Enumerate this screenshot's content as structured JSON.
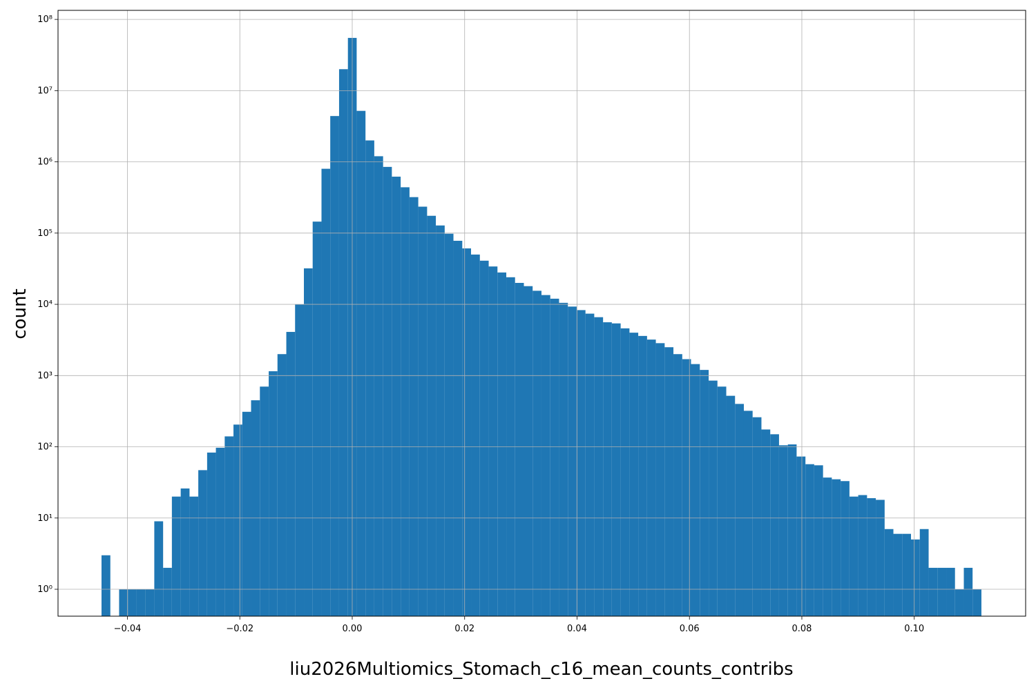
{
  "chart_data": {
    "type": "histogram",
    "xlabel": "liu2026Multiomics_Stomach_c16_mean_counts_contribs",
    "ylabel": "count",
    "color": "#1f77b4",
    "log_y": true,
    "grid": true,
    "bins": [
      -0.04461,
      -0.04304,
      -0.04148,
      -0.03991,
      -0.03835,
      -0.03678,
      -0.03522,
      -0.03365,
      -0.03209,
      -0.03052,
      -0.02895,
      -0.02739,
      -0.02582,
      -0.02426,
      -0.02269,
      -0.02113,
      -0.01956,
      -0.018,
      -0.01643,
      -0.01486,
      -0.0133,
      -0.01173,
      -0.01017,
      -0.0086,
      -0.00704,
      -0.00547,
      -0.00391,
      -0.00234,
      -0.00077,
      0.00079,
      0.00236,
      0.00392,
      0.00549,
      0.00705,
      0.00862,
      0.01019,
      0.01175,
      0.01332,
      0.01488,
      0.01645,
      0.01801,
      0.01958,
      0.02114,
      0.02271,
      0.02428,
      0.02584,
      0.02741,
      0.02897,
      0.03054,
      0.0321,
      0.03367,
      0.03524,
      0.0368,
      0.03837,
      0.03993,
      0.0415,
      0.04306,
      0.04463,
      0.04619,
      0.04776,
      0.04933,
      0.05089,
      0.05246,
      0.05402,
      0.05559,
      0.05715,
      0.05872,
      0.06028,
      0.06185,
      0.06342,
      0.06498,
      0.06655,
      0.06811,
      0.06968,
      0.07124,
      0.07281,
      0.07438,
      0.07594,
      0.07751,
      0.07907,
      0.08064,
      0.0822,
      0.08377,
      0.08533,
      0.0869,
      0.08847,
      0.09003,
      0.0916,
      0.09316,
      0.09473,
      0.09629,
      0.09786,
      0.09942,
      0.10099,
      0.10256,
      0.10412,
      0.10569,
      0.10725,
      0.10882,
      0.11038,
      0.11195
    ],
    "values": [
      3,
      0,
      1,
      1,
      1,
      1,
      9,
      2,
      20,
      26,
      20,
      47,
      83,
      97,
      140,
      205,
      310,
      450,
      700,
      1150,
      2000,
      4100,
      10000,
      32000,
      145000,
      800000,
      4400000,
      20000000,
      55000000,
      5200000,
      2000000,
      1200000,
      850000,
      620000,
      440000,
      320000,
      235000,
      175000,
      128000,
      98000,
      78000,
      61000,
      50000,
      41000,
      34000,
      28000,
      24000,
      20000,
      18000,
      15500,
      13500,
      12000,
      10500,
      9300,
      8300,
      7400,
      6600,
      5600,
      5400,
      4600,
      4000,
      3600,
      3200,
      2850,
      2500,
      2000,
      1700,
      1450,
      1200,
      850,
      700,
      520,
      400,
      320,
      260,
      175,
      150,
      105,
      108,
      73,
      57,
      55,
      37,
      35,
      33,
      20,
      21,
      19,
      18,
      7,
      6,
      6,
      5,
      7,
      2,
      2,
      2,
      1,
      2,
      1
    ],
    "xlim": [
      -0.05235,
      0.11982
    ],
    "ylim": [
      0.419,
      134000000
    ],
    "xticks": [
      {
        "value": -0.04,
        "label": "−0.04"
      },
      {
        "value": -0.02,
        "label": "−0.02"
      },
      {
        "value": 0,
        "label": "0.00"
      },
      {
        "value": 0.02,
        "label": "0.02"
      },
      {
        "value": 0.04,
        "label": "0.04"
      },
      {
        "value": 0.06,
        "label": "0.06"
      },
      {
        "value": 0.08,
        "label": "0.08"
      },
      {
        "value": 0.1,
        "label": "0.10"
      }
    ],
    "yticks": [
      {
        "value": 1,
        "label": "10⁰"
      },
      {
        "value": 10,
        "label": "10¹"
      },
      {
        "value": 100,
        "label": "10²"
      },
      {
        "value": 1000,
        "label": "10³"
      },
      {
        "value": 10000,
        "label": "10⁴"
      },
      {
        "value": 100000,
        "label": "10⁵"
      },
      {
        "value": 1000000,
        "label": "10⁶"
      },
      {
        "value": 10000000,
        "label": "10⁷"
      },
      {
        "value": 100000000,
        "label": "10⁸"
      }
    ]
  }
}
